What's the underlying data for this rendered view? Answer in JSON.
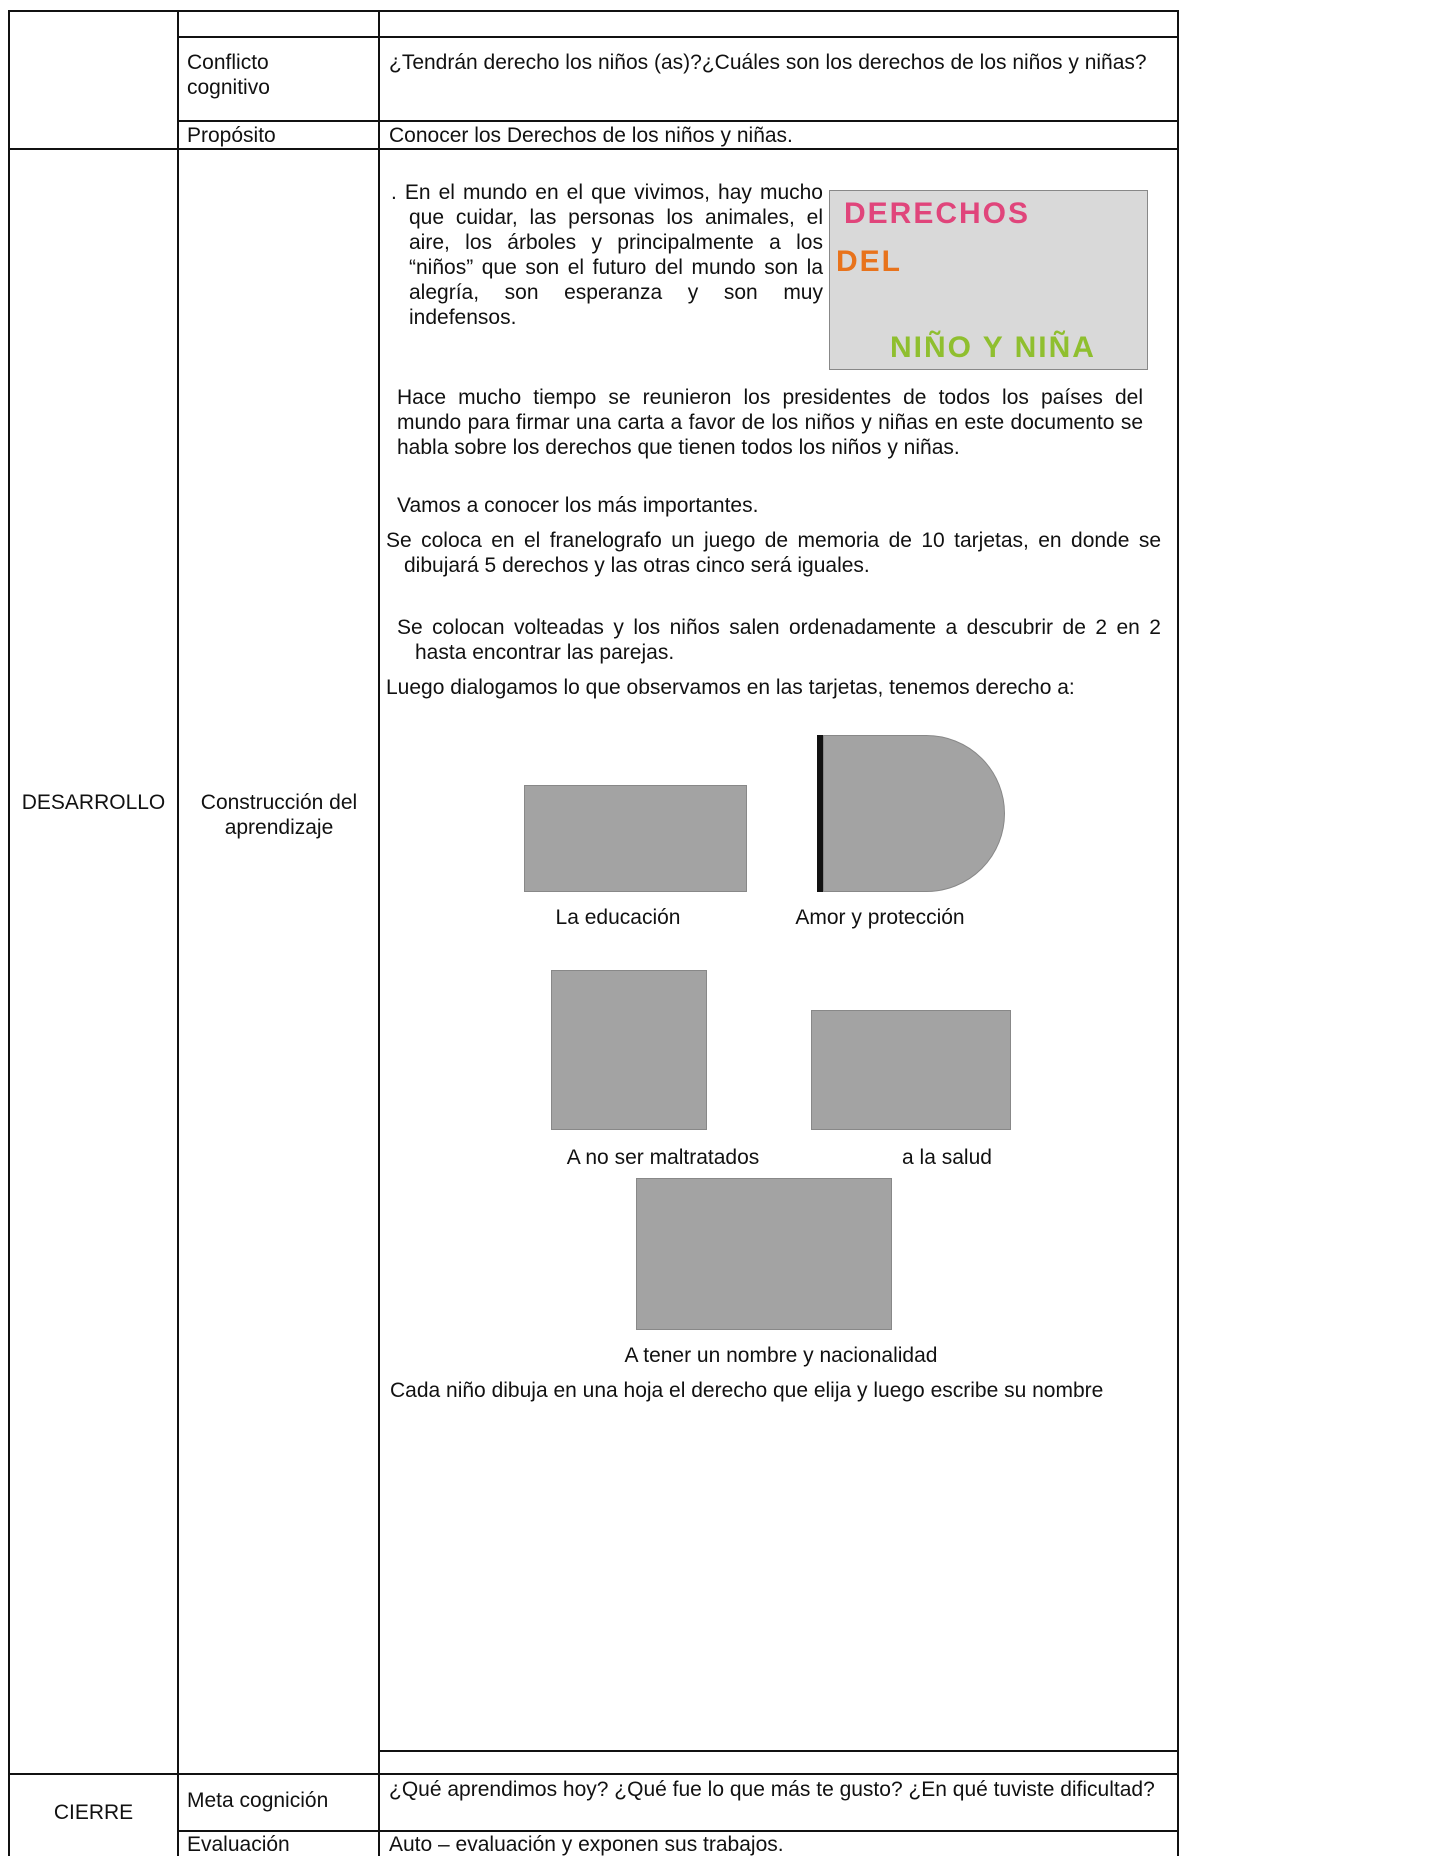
{
  "table": {
    "conflict": {
      "label": "Conflicto cognitivo",
      "text": "¿Tendrán derecho los niños (as)?¿Cuáles son los derechos de los niños y niñas?"
    },
    "purpose": {
      "label": "Propósito",
      "text": "Conocer los Derechos de los niños y niñas."
    },
    "development": {
      "stage": "DESARROLLO",
      "label": "Construcción del aprendizaje",
      "paragraphs": [
        ". En el mundo en el que vivimos, hay mucho que cuidar, las personas los animales, el aire, los árboles y principalmente a los “niños” que son el futuro del mundo son la alegría, son esperanza y son muy indefensos.",
        "Hace mucho tiempo se reunieron los presidentes de todos los países del mundo para firmar una carta a favor de los niños y niñas en este documento se habla sobre los derechos que tienen todos los niños y niñas.",
        "Vamos a conocer los más importantes.",
        "Se coloca en el franelografo un juego de memoria de 10 tarjetas, en donde se dibujará 5 derechos y las otras cinco será iguales.",
        "Se colocan volteadas y los niños salen ordenadamente a descubrir de 2 en 2 hasta encontrar las parejas.",
        "Luego dialogamos lo que observamos en las tarjetas, tenemos derecho a:",
        "Cada niño dibuja en una hoja el derecho que elija y luego escribe su nombre"
      ],
      "banner": {
        "top": "DERECHOS",
        "middle": "DEL",
        "bottom": "NIÑO Y NIÑA"
      },
      "rights": [
        "La educación",
        "Amor y protección",
        "A no ser maltratados",
        "a la salud",
        "A tener un nombre y nacionalidad"
      ]
    },
    "closure": {
      "stage": "CIERRE",
      "metacognition": {
        "label": "Meta cognición",
        "text": "¿Qué aprendimos hoy? ¿Qué fue lo que más te gusto? ¿En qué tuviste dificultad?"
      },
      "evaluation": {
        "label": "Evaluación",
        "text": "Auto – evaluación y exponen sus trabajos."
      }
    }
  }
}
